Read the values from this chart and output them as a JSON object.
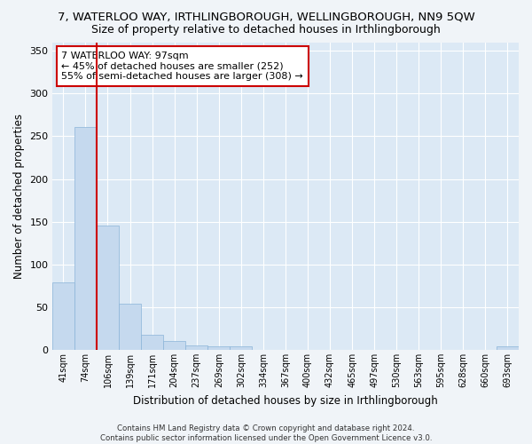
{
  "title": "7, WATERLOO WAY, IRTHLINGBOROUGH, WELLINGBOROUGH, NN9 5QW",
  "subtitle": "Size of property relative to detached houses in Irthlingborough",
  "xlabel": "Distribution of detached houses by size in Irthlingborough",
  "ylabel": "Number of detached properties",
  "categories": [
    "41sqm",
    "74sqm",
    "106sqm",
    "139sqm",
    "171sqm",
    "204sqm",
    "237sqm",
    "269sqm",
    "302sqm",
    "334sqm",
    "367sqm",
    "400sqm",
    "432sqm",
    "465sqm",
    "497sqm",
    "530sqm",
    "563sqm",
    "595sqm",
    "628sqm",
    "660sqm",
    "693sqm"
  ],
  "values": [
    79,
    261,
    145,
    54,
    18,
    10,
    5,
    4,
    4,
    0,
    0,
    0,
    0,
    0,
    0,
    0,
    0,
    0,
    0,
    0,
    4
  ],
  "bar_color": "#c5d9ee",
  "bar_edge_color": "#8ab4d8",
  "background_color": "#dce9f5",
  "fig_background_color": "#f0f4f8",
  "grid_color": "#ffffff",
  "vline_x": 1.5,
  "vline_color": "#cc0000",
  "annotation_text": "7 WATERLOO WAY: 97sqm\n← 45% of detached houses are smaller (252)\n55% of semi-detached houses are larger (308) →",
  "annotation_box_color": "#ffffff",
  "annotation_box_edge": "#cc0000",
  "ylim": [
    0,
    360
  ],
  "yticks": [
    0,
    50,
    100,
    150,
    200,
    250,
    300,
    350
  ],
  "footer": "Contains HM Land Registry data © Crown copyright and database right 2024.\nContains public sector information licensed under the Open Government Licence v3.0.",
  "title_fontsize": 9.5,
  "subtitle_fontsize": 9,
  "xlabel_fontsize": 8.5,
  "ylabel_fontsize": 8.5,
  "annotation_fontsize": 8
}
